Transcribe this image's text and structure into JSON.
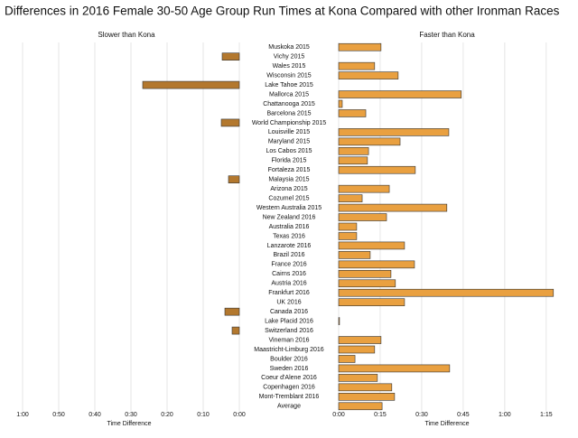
{
  "chart_data": {
    "type": "butterfly-bar",
    "title": "Differences in 2016 Female 30-50 Age Group Run Times at Kona Compared with other Ironman Races",
    "categories": [
      "Muskoka 2015",
      "Vichy 2015",
      "Wales 2015",
      "Wisconsin 2015",
      "Lake Tahoe 2015",
      "Mallorca 2015",
      "Chattanooga 2015",
      "Barcelona 2015",
      "World Championship 2015",
      "Louisville 2015",
      "Maryland 2015",
      "Los Cabos 2015",
      "Florida 2015",
      "Fortaleza 2015",
      "Malaysia 2015",
      "Arizona 2015",
      "Cozumel 2015",
      "Western Australia 2015",
      "New Zealand 2016",
      "Australia 2016",
      "Texas 2016",
      "Lanzarote 2016",
      "Brazil 2016",
      "France 2016",
      "Cairns 2016",
      "Austria 2016",
      "Frankfurt 2016",
      "UK 2016",
      "Canada 2016",
      "Lake Placid 2016",
      "Switzerland 2016",
      "Vineman 2016",
      "Maastricht-Limburg 2016",
      "Boulder 2016",
      "Sweden 2016",
      "Coeur d'Alene 2016",
      "Copenhagen 2016",
      "Mont-Tremblant 2016",
      "Average"
    ],
    "series": [
      {
        "name": "Slower than Kona",
        "color": "#b3782e",
        "xlabel": "Time Difference",
        "xlim": [
          65,
          0
        ],
        "xticks": [
          {
            "value": 60,
            "label": "1:00"
          },
          {
            "value": 50,
            "label": "0:50"
          },
          {
            "value": 40,
            "label": "0:40"
          },
          {
            "value": 30,
            "label": "0:30"
          },
          {
            "value": 20,
            "label": "0:20"
          },
          {
            "value": 10,
            "label": "0:10"
          },
          {
            "value": 0,
            "label": "0:00"
          }
        ],
        "values": [
          null,
          4.75,
          null,
          null,
          26.75,
          null,
          null,
          null,
          5,
          null,
          null,
          null,
          null,
          null,
          3,
          null,
          null,
          null,
          null,
          null,
          null,
          null,
          null,
          null,
          null,
          null,
          null,
          null,
          4,
          null,
          2,
          null,
          null,
          null,
          null,
          null,
          null,
          null,
          null
        ]
      },
      {
        "name": "Faster than Kona",
        "color": "#e9a040",
        "xlabel": "Time Difference",
        "xlim": [
          0,
          78
        ],
        "xticks": [
          {
            "value": 0,
            "label": "0:00"
          },
          {
            "value": 15,
            "label": "0:15"
          },
          {
            "value": 30,
            "label": "0:30"
          },
          {
            "value": 45,
            "label": "0:45"
          },
          {
            "value": 60,
            "label": "1:00"
          },
          {
            "value": 75,
            "label": "1:15"
          }
        ],
        "values": [
          15.3,
          null,
          13,
          21.5,
          null,
          44.3,
          1.3,
          9.8,
          null,
          39.8,
          22.2,
          10.8,
          10.4,
          27.7,
          null,
          18.3,
          8.5,
          39.1,
          17.3,
          6.5,
          6.5,
          23.8,
          11.4,
          27.4,
          18.9,
          20.5,
          77.6,
          23.8,
          null,
          0.3,
          null,
          15.3,
          13,
          5.9,
          40.1,
          14,
          19.2,
          20.2,
          15.7
        ]
      }
    ],
    "grid": true
  }
}
